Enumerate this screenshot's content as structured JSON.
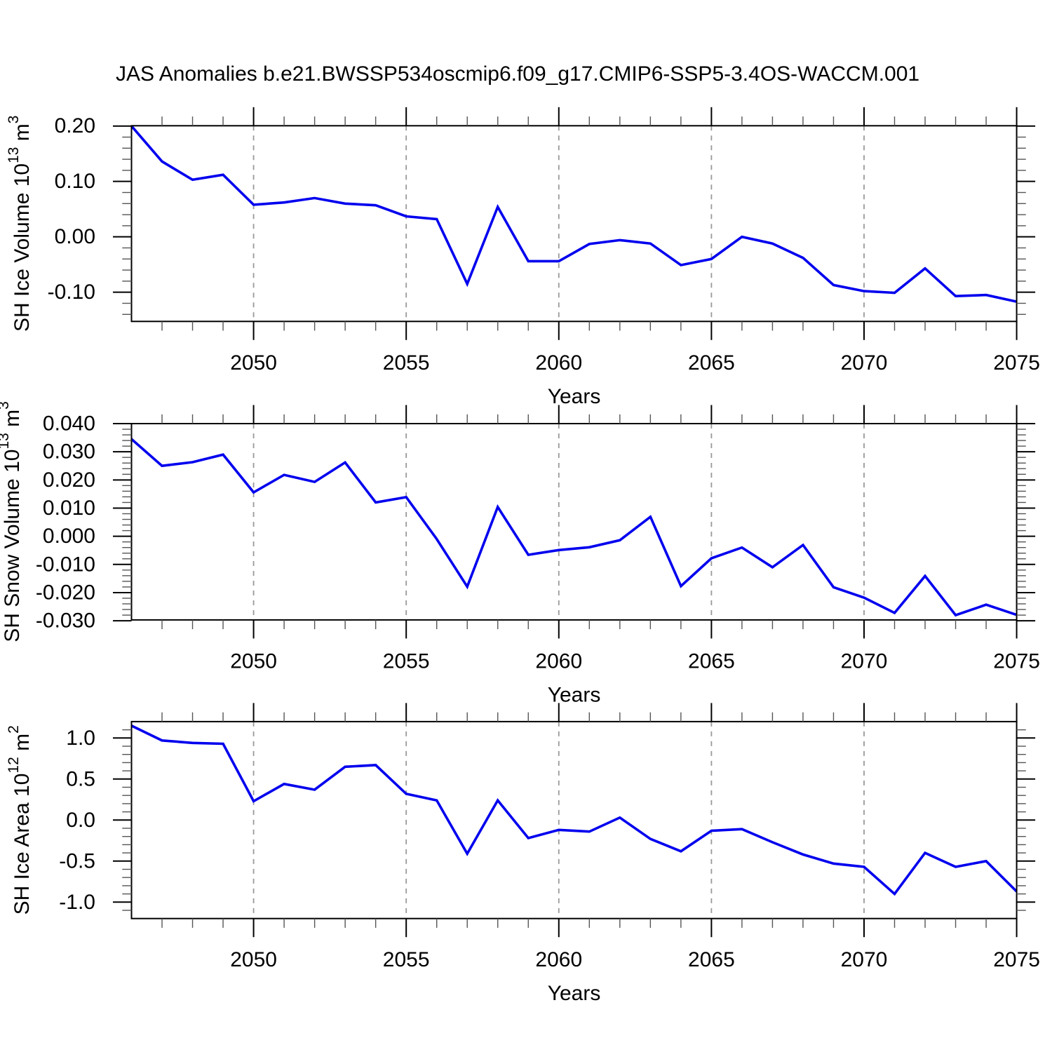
{
  "chart_data": {
    "type": "line",
    "title": "JAS Anomalies b.e21.BWSSP534oscmip6.f09_g17.CMIP6-SSP5-3.4OS-WACCM.001",
    "xlabel": "Years",
    "x": [
      2046,
      2047,
      2048,
      2049,
      2050,
      2051,
      2052,
      2053,
      2054,
      2055,
      2056,
      2057,
      2058,
      2059,
      2060,
      2061,
      2062,
      2063,
      2064,
      2065,
      2066,
      2067,
      2068,
      2069,
      2070,
      2071,
      2072,
      2073,
      2074,
      2075
    ],
    "xlim": [
      2046,
      2075
    ],
    "x_major_ticks": [
      2050,
      2055,
      2060,
      2065,
      2070,
      2075
    ],
    "x_minor_step": 1,
    "gridline_years": [
      2050,
      2055,
      2060,
      2065,
      2070
    ],
    "line_color": "#0000EE",
    "gridline_color": "#999999",
    "panels": [
      {
        "name": "sh-ice-volume",
        "ylabel_text": "SH Ice Volume 10^13 m^3",
        "ylabel_parts": [
          {
            "t": "SH Ice Volume 10"
          },
          {
            "t": "13",
            "sup": true
          },
          {
            "t": " m"
          },
          {
            "t": "3",
            "sup": true
          }
        ],
        "ylim": [
          -0.1527,
          0.2005
        ],
        "y_minor_step": 0.02,
        "yticks": [
          {
            "v": 0.2,
            "label": "0.20"
          },
          {
            "v": 0.1,
            "label": "0.10"
          },
          {
            "v": 0.0,
            "label": "0.00"
          },
          {
            "v": -0.1,
            "label": "-0.10"
          }
        ],
        "values": [
          0.2,
          0.136,
          0.103,
          0.112,
          0.058,
          0.062,
          0.07,
          0.06,
          0.057,
          0.037,
          0.032,
          -0.085,
          0.054,
          -0.044,
          -0.044,
          -0.013,
          -0.006,
          -0.012,
          -0.051,
          -0.04,
          0.0,
          -0.012,
          -0.038,
          -0.087,
          -0.098,
          -0.101,
          -0.057,
          -0.107,
          -0.105,
          -0.117
        ]
      },
      {
        "name": "sh-snow-volume",
        "ylabel_text": "SH Snow Volume 10^13 m^3",
        "ylabel_parts": [
          {
            "t": "SH Snow Volume 10"
          },
          {
            "t": "13",
            "sup": true
          },
          {
            "t": " m"
          },
          {
            "t": "3",
            "sup": true
          }
        ],
        "ylim": [
          -0.0297,
          0.04
        ],
        "y_minor_step": 0.002,
        "yticks": [
          {
            "v": 0.04,
            "label": "0.040"
          },
          {
            "v": 0.03,
            "label": "0.030"
          },
          {
            "v": 0.02,
            "label": "0.020"
          },
          {
            "v": 0.01,
            "label": "0.010"
          },
          {
            "v": 0.0,
            "label": "0.000"
          },
          {
            "v": -0.01,
            "label": "-0.010"
          },
          {
            "v": -0.02,
            "label": "-0.020"
          },
          {
            "v": -0.03,
            "label": "-0.030"
          }
        ],
        "values": [
          0.0345,
          0.025,
          0.0263,
          0.029,
          0.0156,
          0.0218,
          0.0193,
          0.0262,
          0.012,
          0.0139,
          -0.001,
          -0.0179,
          0.0104,
          -0.0066,
          -0.0049,
          -0.0039,
          -0.0014,
          0.0069,
          -0.0177,
          -0.0078,
          -0.004,
          -0.011,
          -0.0031,
          -0.0181,
          -0.0218,
          -0.0272,
          -0.0141,
          -0.028,
          -0.0243,
          -0.0279
        ]
      },
      {
        "name": "sh-ice-area",
        "ylabel_text": "SH Ice Area 10^12 m^2",
        "ylabel_parts": [
          {
            "t": "SH Ice Area 10"
          },
          {
            "t": "12",
            "sup": true
          },
          {
            "t": " m"
          },
          {
            "t": "2",
            "sup": true
          }
        ],
        "ylim": [
          -1.2,
          1.2
        ],
        "y_minor_step": 0.1,
        "yticks": [
          {
            "v": 1.0,
            "label": "1.0"
          },
          {
            "v": 0.5,
            "label": "0.5"
          },
          {
            "v": 0.0,
            "label": "0.0"
          },
          {
            "v": -0.5,
            "label": "-0.5"
          },
          {
            "v": -1.0,
            "label": "-1.0"
          }
        ],
        "values": [
          1.15,
          0.97,
          0.94,
          0.93,
          0.23,
          0.44,
          0.37,
          0.65,
          0.67,
          0.32,
          0.24,
          -0.41,
          0.24,
          -0.22,
          -0.12,
          -0.14,
          0.03,
          -0.23,
          -0.38,
          -0.13,
          -0.11,
          -0.27,
          -0.42,
          -0.53,
          -0.57,
          -0.9,
          -0.4,
          -0.57,
          -0.5,
          -0.87
        ]
      }
    ]
  }
}
